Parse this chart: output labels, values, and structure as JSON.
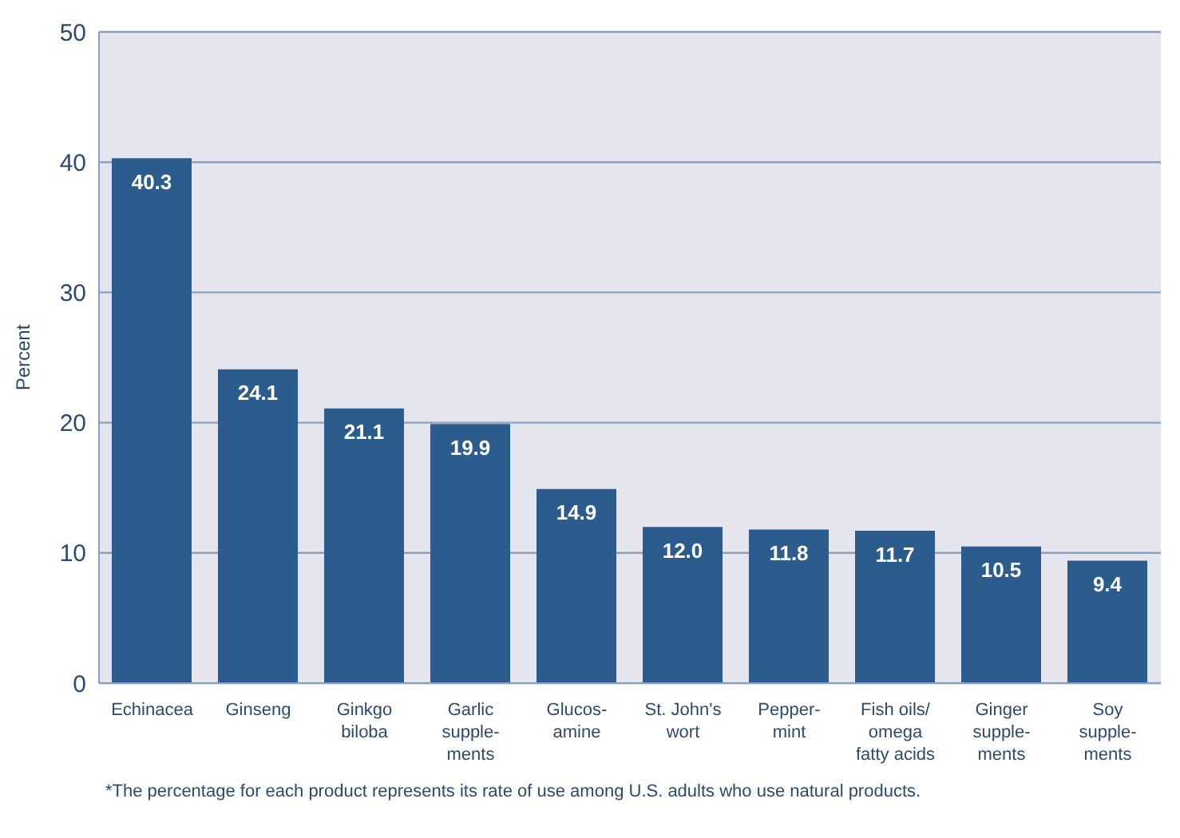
{
  "chart_data": {
    "type": "bar",
    "ylabel": "Percent",
    "categories": [
      "Echinacea",
      "Ginseng",
      "Ginkgo\nbiloba",
      "Garlic\nsupple-\nments",
      "Glucos-\namine",
      "St. John's\nwort",
      "Pepper-\nmint",
      "Fish oils/\nomega\nfatty acids",
      "Ginger\nsupple-\nments",
      "Soy\nsupple-\nments"
    ],
    "values": [
      40.3,
      24.1,
      21.1,
      19.9,
      14.9,
      12.0,
      11.8,
      11.7,
      10.5,
      9.4
    ],
    "value_labels": [
      "40.3",
      "24.1",
      "21.1",
      "19.9",
      "14.9",
      "12.0",
      "11.8",
      "11.7",
      "10.5",
      "9.4"
    ],
    "color": "#2c5b8e",
    "ylim": [
      0,
      50
    ],
    "yticks": [
      0,
      10,
      20,
      30,
      40,
      50
    ],
    "grid": "y",
    "annotations": [
      "*The percentage for each product represents its rate of use among U.S. adults who use natural products."
    ]
  }
}
